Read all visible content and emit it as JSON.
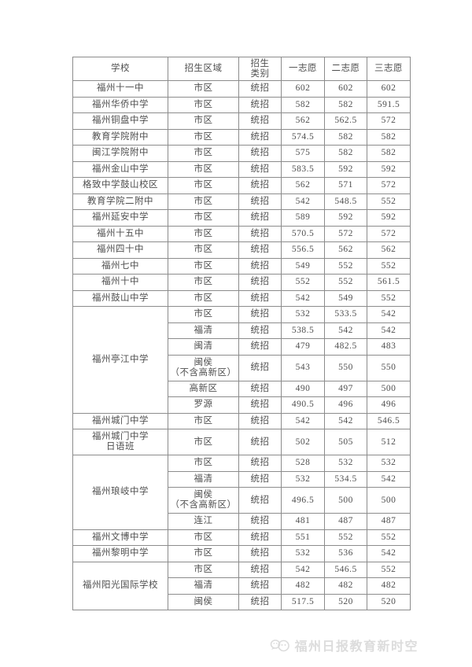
{
  "table": {
    "headers": [
      "学校",
      "招生区域",
      "招生\n类别",
      "一志愿",
      "二志愿",
      "三志愿"
    ],
    "schools": [
      {
        "name": "福州十一中",
        "rows": [
          {
            "region": "市区",
            "cat": "统招",
            "c1": "602",
            "c2": "602",
            "c3": "602"
          }
        ]
      },
      {
        "name": "福州华侨中学",
        "rows": [
          {
            "region": "市区",
            "cat": "统招",
            "c1": "582",
            "c2": "582",
            "c3": "591.5"
          }
        ]
      },
      {
        "name": "福州铜盘中学",
        "rows": [
          {
            "region": "市区",
            "cat": "统招",
            "c1": "562",
            "c2": "562.5",
            "c3": "572"
          }
        ]
      },
      {
        "name": "教育学院附中",
        "rows": [
          {
            "region": "市区",
            "cat": "统招",
            "c1": "574.5",
            "c2": "582",
            "c3": "582"
          }
        ]
      },
      {
        "name": "闽江学院附中",
        "rows": [
          {
            "region": "市区",
            "cat": "统招",
            "c1": "575",
            "c2": "582",
            "c3": "582"
          }
        ]
      },
      {
        "name": "福州金山中学",
        "rows": [
          {
            "region": "市区",
            "cat": "统招",
            "c1": "583.5",
            "c2": "592",
            "c3": "592"
          }
        ]
      },
      {
        "name": "格致中学鼓山校区",
        "rows": [
          {
            "region": "市区",
            "cat": "统招",
            "c1": "562",
            "c2": "571",
            "c3": "572"
          }
        ]
      },
      {
        "name": "教育学院二附中",
        "rows": [
          {
            "region": "市区",
            "cat": "统招",
            "c1": "542",
            "c2": "548.5",
            "c3": "552"
          }
        ]
      },
      {
        "name": "福州延安中学",
        "rows": [
          {
            "region": "市区",
            "cat": "统招",
            "c1": "589",
            "c2": "592",
            "c3": "592"
          }
        ]
      },
      {
        "name": "福州十五中",
        "rows": [
          {
            "region": "市区",
            "cat": "统招",
            "c1": "570.5",
            "c2": "572",
            "c3": "572"
          }
        ]
      },
      {
        "name": "福州四十中",
        "rows": [
          {
            "region": "市区",
            "cat": "统招",
            "c1": "556.5",
            "c2": "562",
            "c3": "562"
          }
        ]
      },
      {
        "name": "福州七中",
        "rows": [
          {
            "region": "市区",
            "cat": "统招",
            "c1": "549",
            "c2": "552",
            "c3": "552"
          }
        ]
      },
      {
        "name": "福州十中",
        "rows": [
          {
            "region": "市区",
            "cat": "统招",
            "c1": "552",
            "c2": "552",
            "c3": "561.5"
          }
        ]
      },
      {
        "name": "福州鼓山中学",
        "rows": [
          {
            "region": "市区",
            "cat": "统招",
            "c1": "542",
            "c2": "549",
            "c3": "552"
          }
        ]
      },
      {
        "name": "福州亭江中学",
        "rows": [
          {
            "region": "市区",
            "cat": "统招",
            "c1": "532",
            "c2": "533.5",
            "c3": "542"
          },
          {
            "region": "福清",
            "cat": "统招",
            "c1": "538.5",
            "c2": "542",
            "c3": "542"
          },
          {
            "region": "闽清",
            "cat": "统招",
            "c1": "479",
            "c2": "482.5",
            "c3": "483"
          },
          {
            "region": "闽侯",
            "region2": "（不含高新区）",
            "cat": "统招",
            "c1": "543",
            "c2": "550",
            "c3": "550"
          },
          {
            "region": "高新区",
            "cat": "统招",
            "c1": "490",
            "c2": "497",
            "c3": "500"
          },
          {
            "region": "罗源",
            "cat": "统招",
            "c1": "490.5",
            "c2": "496",
            "c3": "496"
          }
        ]
      },
      {
        "name": "福州城门中学",
        "rows": [
          {
            "region": "市区",
            "cat": "统招",
            "c1": "542",
            "c2": "542",
            "c3": "546.5"
          }
        ]
      },
      {
        "name": "福州城门中学",
        "name2": "日语班",
        "rows": [
          {
            "region": "市区",
            "cat": "统招",
            "c1": "502",
            "c2": "505",
            "c3": "512"
          }
        ]
      },
      {
        "name": "福州琅岐中学",
        "rows": [
          {
            "region": "市区",
            "cat": "统招",
            "c1": "528",
            "c2": "532",
            "c3": "532"
          },
          {
            "region": "福清",
            "cat": "统招",
            "c1": "532",
            "c2": "534.5",
            "c3": "542"
          },
          {
            "region": "闽侯",
            "region2": "（不含高新区）",
            "cat": "统招",
            "c1": "496.5",
            "c2": "500",
            "c3": "500"
          },
          {
            "region": "连江",
            "cat": "统招",
            "c1": "481",
            "c2": "487",
            "c3": "487"
          }
        ]
      },
      {
        "name": "福州文博中学",
        "rows": [
          {
            "region": "市区",
            "cat": "统招",
            "c1": "551",
            "c2": "552",
            "c3": "552"
          }
        ]
      },
      {
        "name": "福州黎明中学",
        "rows": [
          {
            "region": "市区",
            "cat": "统招",
            "c1": "532",
            "c2": "536",
            "c3": "542"
          }
        ]
      },
      {
        "name": "福州阳光国际学校",
        "rows": [
          {
            "region": "市区",
            "cat": "统招",
            "c1": "542",
            "c2": "546.5",
            "c3": "552"
          },
          {
            "region": "福清",
            "cat": "统招",
            "c1": "482",
            "c2": "482",
            "c3": "482"
          },
          {
            "region": "闽侯",
            "cat": "统招",
            "c1": "517.5",
            "c2": "520",
            "c3": "520"
          }
        ]
      }
    ]
  },
  "watermark": {
    "text": "福州日报教育新时空",
    "icon": "wechat-icon"
  },
  "colors": {
    "border": "#8c8c8c",
    "text": "#4f4f4f",
    "watermark": "#dcdcdc",
    "background": "#ffffff"
  }
}
